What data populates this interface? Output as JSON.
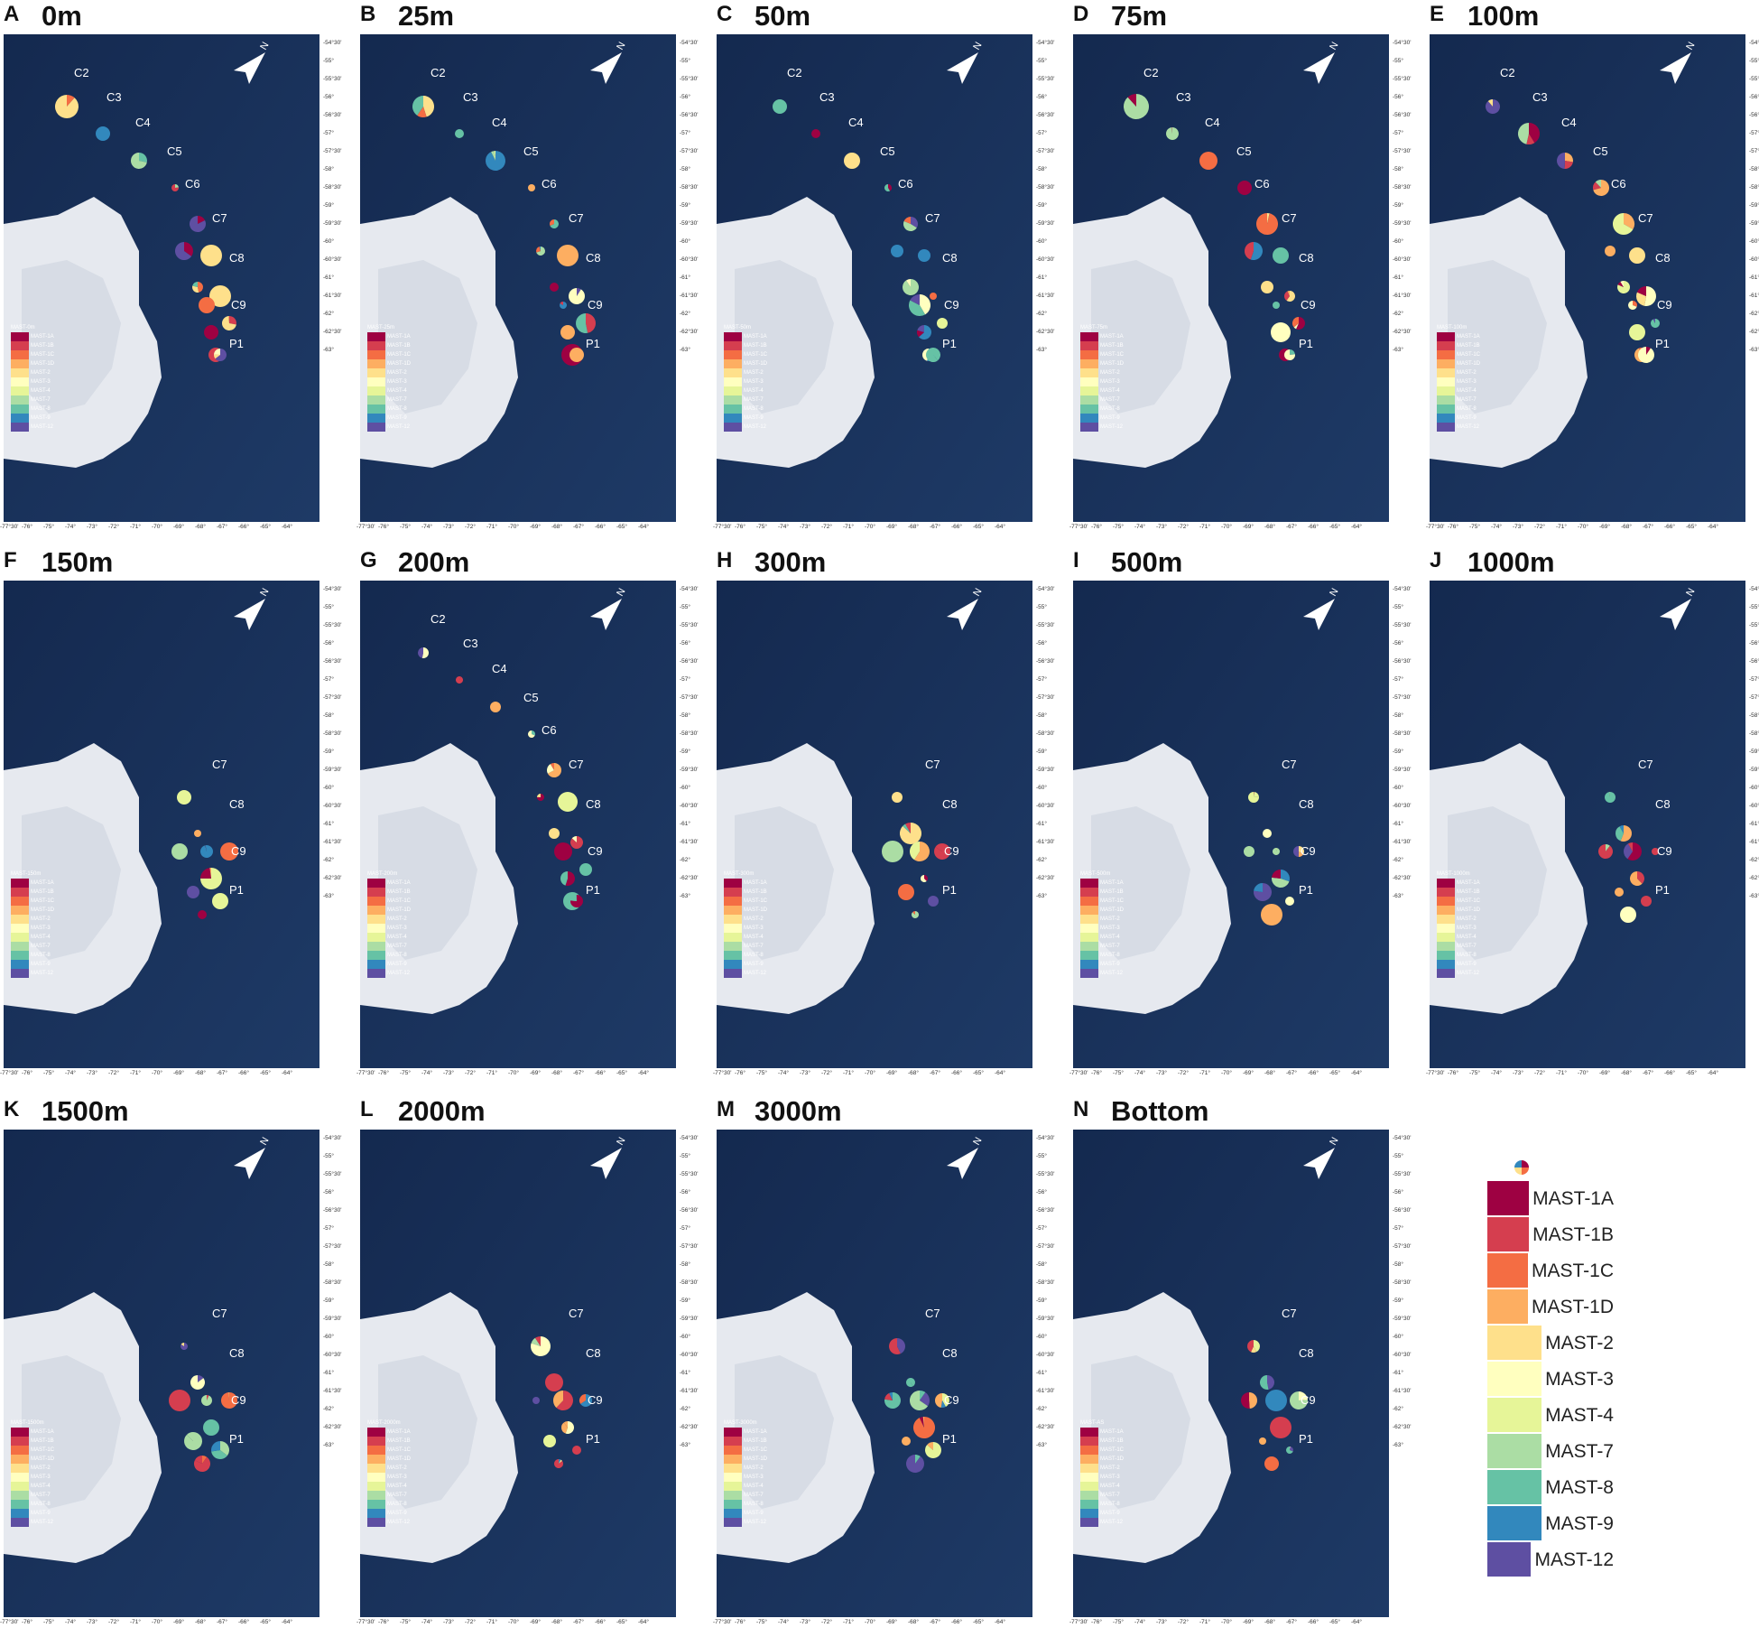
{
  "panels": [
    {
      "letter": "A",
      "depth": "0m",
      "legend_title": "MAST-0m",
      "show_upper_stations": true
    },
    {
      "letter": "B",
      "depth": "25m",
      "legend_title": "MAST-25m",
      "show_upper_stations": true
    },
    {
      "letter": "C",
      "depth": "50m",
      "legend_title": "MAST-50m",
      "show_upper_stations": true
    },
    {
      "letter": "D",
      "depth": "75m",
      "legend_title": "MAST-75m",
      "show_upper_stations": true
    },
    {
      "letter": "E",
      "depth": "100m",
      "legend_title": "MAST-100m",
      "show_upper_stations": true
    },
    {
      "letter": "F",
      "depth": "150m",
      "legend_title": "MAST-150m",
      "show_upper_stations": false
    },
    {
      "letter": "G",
      "depth": "200m",
      "legend_title": "MAST-200m",
      "show_upper_stations": true
    },
    {
      "letter": "H",
      "depth": "300m",
      "legend_title": "MAST-300m",
      "show_upper_stations": false
    },
    {
      "letter": "I",
      "depth": "500m",
      "legend_title": "MAST-500m",
      "show_upper_stations": false
    },
    {
      "letter": "J",
      "depth": "1000m",
      "legend_title": "MAST-1000m",
      "show_upper_stations": false
    },
    {
      "letter": "K",
      "depth": "1500m",
      "legend_title": "MAST-1500m",
      "show_upper_stations": false
    },
    {
      "letter": "L",
      "depth": "2000m",
      "legend_title": "MAST-2000m",
      "show_upper_stations": false
    },
    {
      "letter": "M",
      "depth": "3000m",
      "legend_title": "MAST-3000m",
      "show_upper_stations": false
    },
    {
      "letter": "N",
      "depth": "Bottom",
      "legend_title": "MAST-AS",
      "show_upper_stations": false
    }
  ],
  "stations_upper": [
    "C2",
    "C3",
    "C4",
    "C5",
    "C6"
  ],
  "stations_lower": [
    "C7",
    "C8",
    "C9",
    "P1"
  ],
  "lat_ticks": [
    "-54°30'",
    "-55°",
    "-55°30'",
    "-56°",
    "-56°30'",
    "-57°",
    "-57°30'",
    "-58°",
    "-58°30'",
    "-59°",
    "-59°30'",
    "-60°",
    "-60°30'",
    "-61°",
    "-61°30'",
    "-62°",
    "-62°30'",
    "-63°"
  ],
  "lon_ticks": [
    "-77°30'",
    "-76°",
    "-75°",
    "-74°",
    "-73°",
    "-72°",
    "-71°",
    "-70°",
    "-69°",
    "-68°",
    "-67°",
    "-66°",
    "-65°",
    "-64°"
  ],
  "north_label": "N",
  "legend": [
    {
      "name": "MAST-1A",
      "color": "#9e0142"
    },
    {
      "name": "MAST-1B",
      "color": "#d53e4f"
    },
    {
      "name": "MAST-1C",
      "color": "#f46d43"
    },
    {
      "name": "MAST-1D",
      "color": "#fdae61"
    },
    {
      "name": "MAST-2",
      "color": "#fee08b"
    },
    {
      "name": "MAST-3",
      "color": "#ffffbf"
    },
    {
      "name": "MAST-4",
      "color": "#e6f598"
    },
    {
      "name": "MAST-7",
      "color": "#abdda4"
    },
    {
      "name": "MAST-8",
      "color": "#66c2a5"
    },
    {
      "name": "MAST-9",
      "color": "#3288bd"
    },
    {
      "name": "MAST-12",
      "color": "#5e4fa2"
    }
  ],
  "colors": {
    "ocean": "#14294f",
    "ocean_light": "#1e3a66",
    "land": "#e6e9ef",
    "land_shade": "#c7cfdc"
  }
}
